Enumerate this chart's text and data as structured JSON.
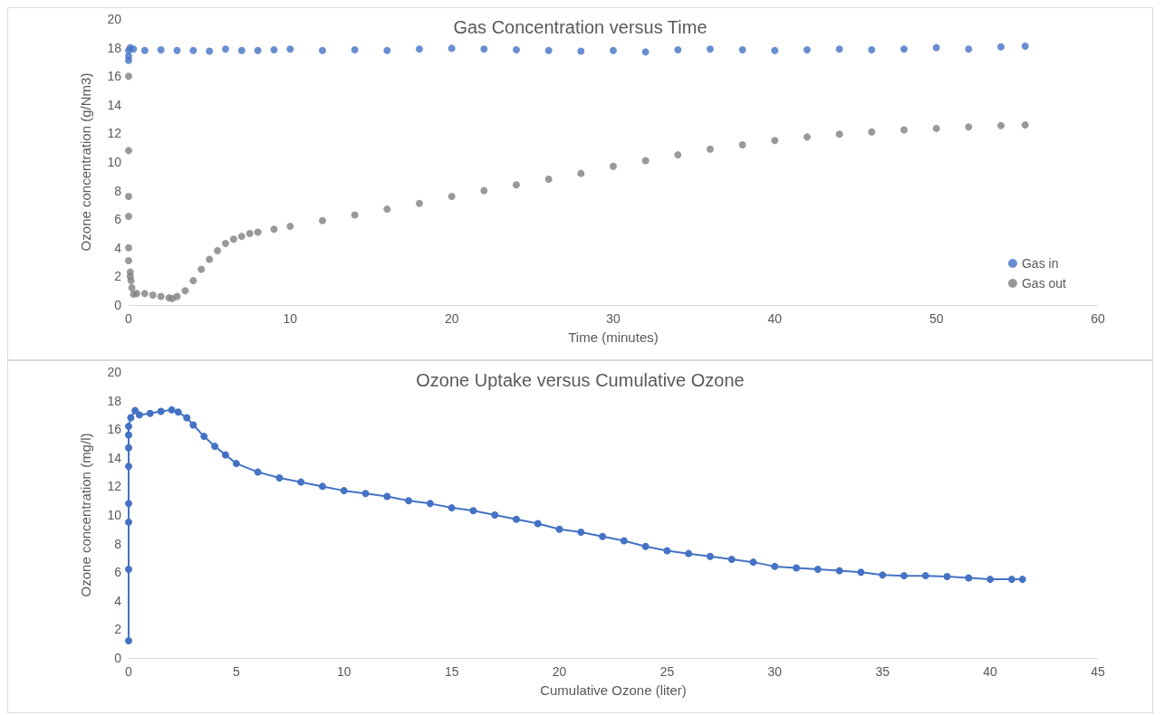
{
  "chart_data": [
    {
      "type": "scatter",
      "title": "Gas Concentration versus Time",
      "xlabel": "Time (minutes)",
      "ylabel": "Ozone concentration (g/Nm3)",
      "xlim": [
        0,
        60
      ],
      "xticks": [
        0,
        10,
        20,
        30,
        40,
        50,
        60
      ],
      "ylim": [
        0,
        20
      ],
      "yticks": [
        0,
        2,
        4,
        6,
        8,
        10,
        12,
        14,
        16,
        18,
        20
      ],
      "grid": false,
      "legend": "right",
      "marker": "circle",
      "series": [
        {
          "name": "Gas in",
          "color": "#4472c4",
          "x": [
            0,
            0,
            0,
            0.1,
            0.3,
            1,
            2,
            3,
            4,
            5,
            6,
            7,
            8,
            9,
            10,
            12,
            14,
            16,
            18,
            20,
            22,
            24,
            26,
            28,
            30,
            32,
            34,
            36,
            38,
            40,
            42,
            44,
            46,
            48,
            50,
            52,
            54,
            55.5
          ],
          "values": [
            17.1,
            17.4,
            17.8,
            18.0,
            17.9,
            17.8,
            17.85,
            17.8,
            17.8,
            17.75,
            17.9,
            17.8,
            17.8,
            17.85,
            17.9,
            17.8,
            17.85,
            17.8,
            17.9,
            17.95,
            17.9,
            17.85,
            17.8,
            17.75,
            17.8,
            17.7,
            17.85,
            17.9,
            17.85,
            17.8,
            17.85,
            17.9,
            17.85,
            17.9,
            18.0,
            17.9,
            18.05,
            18.1
          ]
        },
        {
          "name": "Gas out",
          "color": "#7f7f7f",
          "x": [
            0,
            0,
            0,
            0,
            0,
            0,
            0.1,
            0.1,
            0.15,
            0.2,
            0.3,
            0.5,
            1,
            1.5,
            2,
            2.5,
            2.7,
            3,
            3.5,
            4,
            4.5,
            5,
            5.5,
            6,
            6.5,
            7,
            7.5,
            8,
            9,
            10,
            12,
            14,
            16,
            18,
            20,
            22,
            24,
            26,
            28,
            30,
            32,
            34,
            36,
            38,
            40,
            42,
            44,
            46,
            48,
            50,
            52,
            54,
            55.5
          ],
          "values": [
            16.0,
            10.8,
            7.6,
            6.2,
            4.0,
            3.1,
            2.3,
            2.0,
            1.7,
            1.2,
            0.75,
            0.8,
            0.8,
            0.7,
            0.6,
            0.5,
            0.45,
            0.6,
            1.0,
            1.7,
            2.5,
            3.2,
            3.8,
            4.3,
            4.6,
            4.8,
            5.0,
            5.1,
            5.3,
            5.5,
            5.9,
            6.3,
            6.7,
            7.1,
            7.6,
            8.0,
            8.4,
            8.8,
            9.2,
            9.7,
            10.1,
            10.5,
            10.9,
            11.2,
            11.5,
            11.75,
            11.95,
            12.1,
            12.25,
            12.35,
            12.45,
            12.55,
            12.6
          ]
        }
      ]
    },
    {
      "type": "line",
      "title": "Ozone Uptake versus Cumulative Ozone",
      "xlabel": "Cumulative Ozone (liter)",
      "ylabel": "Ozone concentration (mg/l)",
      "xlim": [
        0,
        45
      ],
      "xticks": [
        0,
        5,
        10,
        15,
        20,
        25,
        30,
        35,
        40,
        45
      ],
      "ylim": [
        0,
        20
      ],
      "yticks": [
        0,
        2,
        4,
        6,
        8,
        10,
        12,
        14,
        16,
        18,
        20
      ],
      "grid": false,
      "legend": false,
      "marker": "circle",
      "line_style": "solid",
      "series": [
        {
          "color": "#4472c4",
          "x": [
            0,
            0,
            0,
            0,
            0,
            0,
            0,
            0,
            0.1,
            0.3,
            0.5,
            1,
            1.5,
            2,
            2.3,
            2.7,
            3,
            3.5,
            4,
            4.5,
            5,
            6,
            7,
            8,
            9,
            10,
            11,
            12,
            13,
            14,
            15,
            16,
            17,
            18,
            19,
            20,
            21,
            22,
            23,
            24,
            25,
            26,
            27,
            28,
            29,
            30,
            31,
            32,
            33,
            34,
            35,
            36,
            37,
            38,
            39,
            40,
            41,
            41.5
          ],
          "values": [
            1.2,
            6.2,
            9.5,
            10.8,
            13.4,
            14.7,
            15.6,
            16.2,
            16.8,
            17.3,
            17.0,
            17.1,
            17.25,
            17.35,
            17.2,
            16.8,
            16.3,
            15.5,
            14.8,
            14.2,
            13.6,
            13.0,
            12.6,
            12.3,
            12.0,
            11.7,
            11.5,
            11.3,
            11.0,
            10.8,
            10.5,
            10.3,
            10.0,
            9.7,
            9.4,
            9.0,
            8.8,
            8.5,
            8.2,
            7.8,
            7.5,
            7.3,
            7.1,
            6.9,
            6.7,
            6.4,
            6.3,
            6.2,
            6.1,
            6.0,
            5.8,
            5.75,
            5.75,
            5.7,
            5.6,
            5.5,
            5.5,
            5.5
          ]
        }
      ]
    }
  ]
}
